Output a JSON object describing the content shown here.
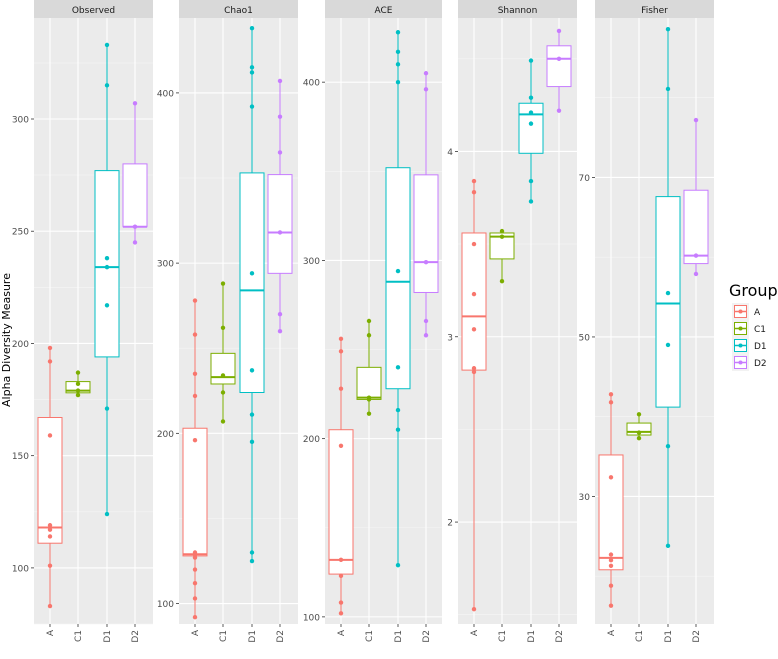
{
  "chart_data": {
    "type": "boxplot",
    "ylabel": "Alpha Diversity Measure",
    "categories": [
      "A",
      "C1",
      "D1",
      "D2"
    ],
    "legend": {
      "title": "Group",
      "position": "right",
      "items": [
        {
          "label": "A",
          "color": "#F8766D"
        },
        {
          "label": "C1",
          "color": "#7CAE00"
        },
        {
          "label": "D1",
          "color": "#00BFC4"
        },
        {
          "label": "D2",
          "color": "#C77CFF"
        }
      ]
    },
    "panel_background": "#EBEBEB",
    "grid": true,
    "panels": [
      {
        "title": "Observed",
        "ylim": [
          75,
          345
        ],
        "yticks": [
          100,
          150,
          200,
          250,
          300
        ],
        "groups": [
          {
            "name": "A",
            "q1": 111,
            "median": 118,
            "q3": 167,
            "whisker_low": 83,
            "whisker_high": 198,
            "points": [
              83,
              101,
              114,
              117,
              119,
              159,
              192,
              198
            ]
          },
          {
            "name": "C1",
            "q1": 178,
            "median": 179,
            "q3": 183,
            "whisker_low": 177,
            "whisker_high": 187,
            "points": [
              177,
              179,
              182,
              187
            ]
          },
          {
            "name": "D1",
            "q1": 194,
            "median": 234,
            "q3": 277,
            "whisker_low": 124,
            "whisker_high": 333,
            "points": [
              124,
              171,
              217,
              234,
              238,
              315,
              333
            ]
          },
          {
            "name": "D2",
            "q1": 252,
            "median": 252,
            "q3": 280,
            "whisker_low": 245,
            "whisker_high": 307,
            "points": [
              245,
              252,
              307
            ]
          }
        ]
      },
      {
        "title": "Chao1",
        "ylim": [
          88,
          444
        ],
        "yticks": [
          100,
          200,
          300,
          400
        ],
        "groups": [
          {
            "name": "A",
            "q1": 128,
            "median": 129,
            "q3": 203,
            "whisker_low": 92,
            "whisker_high": 278,
            "points": [
              92,
              103,
              112,
              120,
              127,
              129,
              130,
              196,
              222,
              235,
              258,
              278
            ]
          },
          {
            "name": "C1",
            "q1": 229,
            "median": 233,
            "q3": 247,
            "whisker_low": 207,
            "whisker_high": 288,
            "points": [
              207,
              224,
              234,
              262,
              288
            ]
          },
          {
            "name": "D1",
            "q1": 224,
            "median": 284,
            "q3": 353,
            "whisker_low": 125,
            "whisker_high": 438,
            "points": [
              125,
              130,
              195,
              211,
              237,
              294,
              392,
              412,
              415,
              438
            ]
          },
          {
            "name": "D2",
            "q1": 294,
            "median": 318,
            "q3": 352,
            "whisker_low": 260,
            "whisker_high": 407,
            "points": [
              260,
              270,
              318,
              365,
              386,
              407
            ]
          }
        ]
      },
      {
        "title": "ACE",
        "ylim": [
          96,
          436
        ],
        "yticks": [
          100,
          200,
          300,
          400
        ],
        "groups": [
          {
            "name": "A",
            "q1": 124,
            "median": 132,
            "q3": 205,
            "whisker_low": 102,
            "whisker_high": 256,
            "points": [
              102,
              108,
              123,
              132,
              196,
              228,
              249,
              256
            ]
          },
          {
            "name": "C1",
            "q1": 222,
            "median": 223,
            "q3": 240,
            "whisker_low": 214,
            "whisker_high": 266,
            "points": [
              214,
              222,
              223,
              258,
              266
            ]
          },
          {
            "name": "D1",
            "q1": 228,
            "median": 288,
            "q3": 352,
            "whisker_low": 129,
            "whisker_high": 428,
            "points": [
              129,
              205,
              216,
              240,
              294,
              400,
              410,
              417,
              428
            ]
          },
          {
            "name": "D2",
            "q1": 282,
            "median": 299,
            "q3": 348,
            "whisker_low": 258,
            "whisker_high": 405,
            "points": [
              258,
              266,
              299,
              396,
              405
            ]
          }
        ]
      },
      {
        "title": "Shannon",
        "ylim": [
          1.45,
          4.72
        ],
        "yticks": [
          2,
          3,
          4
        ],
        "groups": [
          {
            "name": "A",
            "q1": 2.82,
            "median": 3.11,
            "q3": 3.56,
            "whisker_low": 1.53,
            "whisker_high": 3.84,
            "points": [
              1.53,
              2.81,
              2.83,
              3.04,
              3.23,
              3.5,
              3.78,
              3.84
            ]
          },
          {
            "name": "C1",
            "q1": 3.42,
            "median": 3.54,
            "q3": 3.56,
            "whisker_low": 3.3,
            "whisker_high": 3.57,
            "points": [
              3.3,
              3.54,
              3.57
            ]
          },
          {
            "name": "D1",
            "q1": 3.99,
            "median": 4.2,
            "q3": 4.26,
            "whisker_low": 3.73,
            "whisker_high": 4.49,
            "points": [
              3.73,
              3.84,
              4.15,
              4.21,
              4.29,
              4.49
            ]
          },
          {
            "name": "D2",
            "q1": 4.35,
            "median": 4.5,
            "q3": 4.57,
            "whisker_low": 4.22,
            "whisker_high": 4.65,
            "points": [
              4.22,
              4.5,
              4.65
            ]
          }
        ]
      },
      {
        "title": "Fisher",
        "ylim": [
          14,
          90
        ],
        "yticks": [
          30,
          50,
          70
        ],
        "groups": [
          {
            "name": "A",
            "q1": 20.8,
            "median": 22.3,
            "q3": 35.2,
            "whisker_low": 16.3,
            "whisker_high": 42.8,
            "points": [
              16.3,
              18.8,
              21.3,
              22.0,
              22.7,
              32.4,
              41.8,
              42.8
            ]
          },
          {
            "name": "C1",
            "q1": 37.7,
            "median": 38.1,
            "q3": 39.2,
            "whisker_low": 37.3,
            "whisker_high": 40.3,
            "points": [
              37.3,
              38.0,
              40.3
            ]
          },
          {
            "name": "D1",
            "q1": 41.2,
            "median": 54.2,
            "q3": 67.6,
            "whisker_low": 23.8,
            "whisker_high": 88.6,
            "points": [
              23.8,
              36.3,
              49.0,
              55.5,
              81.1,
              88.6
            ]
          },
          {
            "name": "D2",
            "q1": 59.2,
            "median": 60.2,
            "q3": 68.4,
            "whisker_low": 57.9,
            "whisker_high": 77.2,
            "points": [
              57.9,
              60.2,
              77.2
            ]
          }
        ]
      }
    ]
  }
}
